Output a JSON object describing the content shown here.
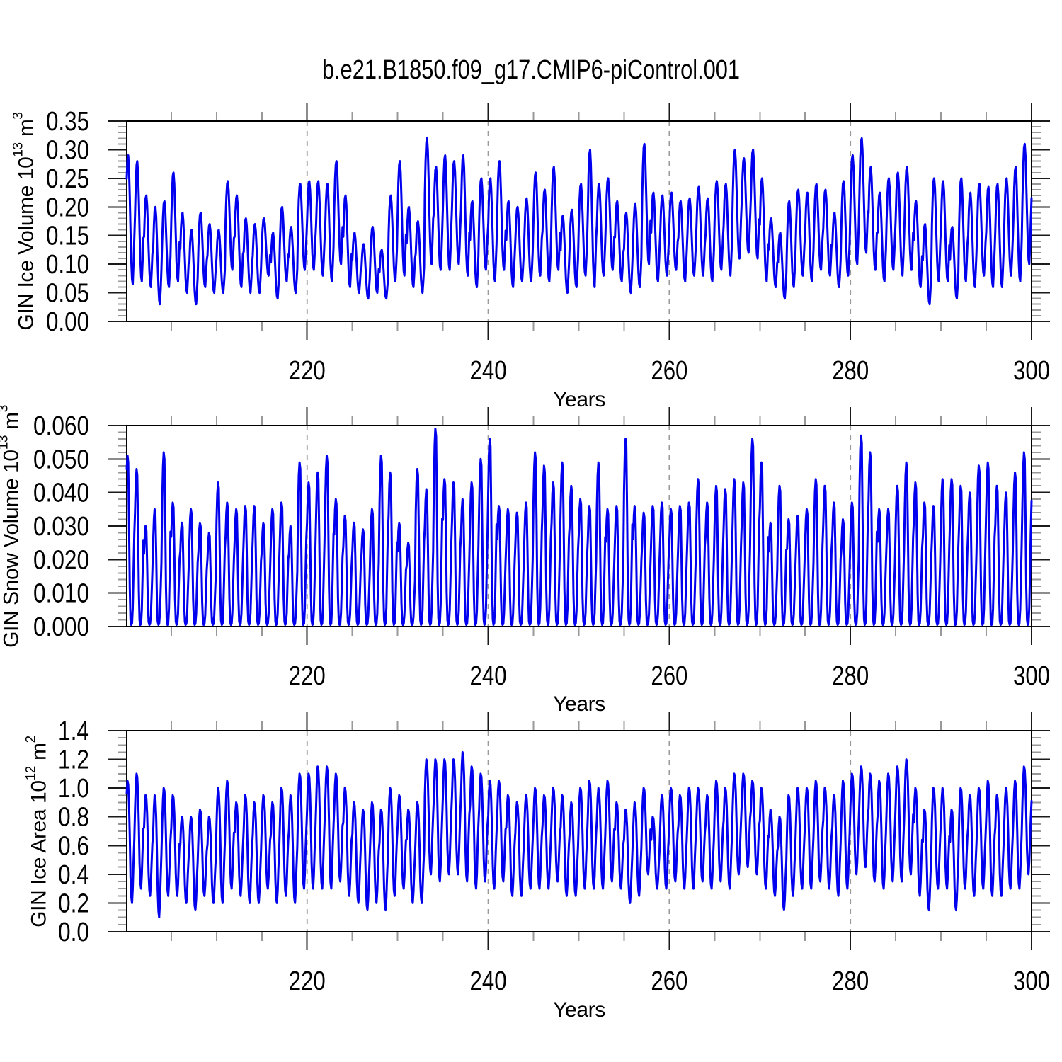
{
  "title": "b.e21.B1850.f09_g17.CMIP6-piControl.001",
  "style": {
    "line_color": "#0000EE",
    "frame_color": "#000000",
    "tick_major_color": "#1a1a1a",
    "tick_minor_color": "#999999",
    "grid_color": "#9a9a9a",
    "text_color": "#000000"
  },
  "chart_data": [
    {
      "type": "line",
      "name": "gin-ice-volume",
      "ylabel": {
        "base": "GIN Ice Volume 10",
        "exp": "13",
        "unit": "m",
        "unit_exp": "3"
      },
      "xlabel": "Years",
      "ylim": [
        0,
        0.35
      ],
      "ytick_values": [
        0.0,
        0.05,
        0.1,
        0.15,
        0.2,
        0.25,
        0.3,
        0.35
      ],
      "ytick_labels": [
        "0.00",
        "0.05",
        "0.10",
        "0.15",
        "0.20",
        "0.25",
        "0.30",
        "0.35"
      ],
      "yminor_step": 0.01,
      "xlim": [
        200.0833,
        300
      ],
      "xtick_values": [
        220,
        240,
        260,
        280,
        300
      ],
      "xtick_labels": [
        "220",
        "240",
        "260",
        "280",
        "300"
      ],
      "xminor_step": 5,
      "grid_x": [
        220,
        240,
        260,
        280
      ],
      "series": {
        "start_year": 200,
        "n_years": 100,
        "seasonal_weights": [
          0.55,
          0.82,
          0.97,
          1.0,
          0.9,
          0.68,
          0.42,
          0.18,
          0.04,
          0.0,
          0.16,
          0.36
        ],
        "annual_max": [
          0.29,
          0.28,
          0.22,
          0.2,
          0.21,
          0.26,
          0.19,
          0.16,
          0.19,
          0.17,
          0.16,
          0.245,
          0.22,
          0.18,
          0.17,
          0.18,
          0.155,
          0.2,
          0.165,
          0.24,
          0.245,
          0.245,
          0.24,
          0.28,
          0.22,
          0.155,
          0.135,
          0.165,
          0.125,
          0.22,
          0.28,
          0.2,
          0.175,
          0.32,
          0.27,
          0.29,
          0.28,
          0.29,
          0.21,
          0.25,
          0.25,
          0.28,
          0.21,
          0.2,
          0.215,
          0.26,
          0.23,
          0.27,
          0.185,
          0.195,
          0.24,
          0.3,
          0.24,
          0.25,
          0.21,
          0.19,
          0.205,
          0.31,
          0.225,
          0.22,
          0.225,
          0.21,
          0.215,
          0.235,
          0.215,
          0.245,
          0.24,
          0.3,
          0.285,
          0.3,
          0.25,
          0.18,
          0.155,
          0.21,
          0.23,
          0.225,
          0.24,
          0.23,
          0.19,
          0.245,
          0.29,
          0.32,
          0.27,
          0.225,
          0.25,
          0.26,
          0.27,
          0.21,
          0.17,
          0.25,
          0.245,
          0.165,
          0.25,
          0.225,
          0.24,
          0.235,
          0.24,
          0.25,
          0.27,
          0.31
        ],
        "annual_min": [
          0.065,
          0.07,
          0.06,
          0.03,
          0.06,
          0.07,
          0.05,
          0.03,
          0.06,
          0.05,
          0.05,
          0.09,
          0.06,
          0.05,
          0.05,
          0.08,
          0.04,
          0.07,
          0.05,
          0.09,
          0.09,
          0.08,
          0.07,
          0.1,
          0.06,
          0.05,
          0.04,
          0.05,
          0.04,
          0.07,
          0.08,
          0.06,
          0.05,
          0.1,
          0.09,
          0.09,
          0.1,
          0.08,
          0.06,
          0.09,
          0.07,
          0.09,
          0.06,
          0.07,
          0.07,
          0.08,
          0.07,
          0.09,
          0.05,
          0.06,
          0.08,
          0.06,
          0.08,
          0.09,
          0.07,
          0.05,
          0.06,
          0.1,
          0.07,
          0.08,
          0.09,
          0.07,
          0.08,
          0.08,
          0.07,
          0.09,
          0.08,
          0.11,
          0.12,
          0.11,
          0.07,
          0.06,
          0.04,
          0.06,
          0.08,
          0.07,
          0.09,
          0.08,
          0.06,
          0.08,
          0.1,
          0.12,
          0.09,
          0.07,
          0.09,
          0.08,
          0.09,
          0.06,
          0.03,
          0.07,
          0.07,
          0.04,
          0.07,
          0.06,
          0.08,
          0.06,
          0.06,
          0.08,
          0.07,
          0.1
        ]
      }
    },
    {
      "type": "line",
      "name": "gin-snow-volume",
      "ylabel": {
        "base": "GIN Snow Volume 10",
        "exp": "13",
        "unit": "m",
        "unit_exp": "3"
      },
      "xlabel": "Years",
      "ylim": [
        0,
        0.06
      ],
      "ytick_values": [
        0.0,
        0.01,
        0.02,
        0.03,
        0.04,
        0.05,
        0.06
      ],
      "ytick_labels": [
        "0.000",
        "0.010",
        "0.020",
        "0.030",
        "0.040",
        "0.050",
        "0.060"
      ],
      "yminor_step": 0.002,
      "xlim": [
        200.0833,
        300
      ],
      "xtick_values": [
        220,
        240,
        260,
        280,
        300
      ],
      "xtick_labels": [
        "220",
        "240",
        "260",
        "280",
        "300"
      ],
      "xminor_step": 5,
      "grid_x": [
        220,
        240,
        260,
        280
      ],
      "series": {
        "start_year": 200,
        "n_years": 100,
        "seasonal_weights": [
          0.72,
          0.92,
          1.0,
          0.96,
          0.62,
          0.22,
          0.03,
          0.0,
          0.01,
          0.1,
          0.32,
          0.54
        ],
        "annual_max": [
          0.051,
          0.047,
          0.03,
          0.035,
          0.052,
          0.037,
          0.031,
          0.035,
          0.031,
          0.028,
          0.043,
          0.037,
          0.035,
          0.036,
          0.036,
          0.031,
          0.035,
          0.037,
          0.03,
          0.049,
          0.043,
          0.046,
          0.051,
          0.038,
          0.033,
          0.031,
          0.029,
          0.035,
          0.051,
          0.046,
          0.031,
          0.025,
          0.047,
          0.041,
          0.059,
          0.044,
          0.043,
          0.038,
          0.043,
          0.05,
          0.056,
          0.036,
          0.035,
          0.034,
          0.037,
          0.052,
          0.048,
          0.043,
          0.049,
          0.042,
          0.038,
          0.036,
          0.049,
          0.035,
          0.036,
          0.056,
          0.036,
          0.034,
          0.036,
          0.037,
          0.035,
          0.036,
          0.037,
          0.044,
          0.037,
          0.042,
          0.041,
          0.044,
          0.043,
          0.056,
          0.049,
          0.031,
          0.042,
          0.032,
          0.033,
          0.035,
          0.044,
          0.042,
          0.037,
          0.032,
          0.037,
          0.057,
          0.052,
          0.035,
          0.035,
          0.042,
          0.049,
          0.043,
          0.037,
          0.036,
          0.044,
          0.044,
          0.042,
          0.04,
          0.048,
          0.049,
          0.042,
          0.04,
          0.046,
          0.052
        ],
        "annual_min_const": 0.0005
      }
    },
    {
      "type": "line",
      "name": "gin-ice-area",
      "ylabel": {
        "base": "GIN Ice Area 10",
        "exp": "12",
        "unit": "m",
        "unit_exp": "2"
      },
      "xlabel": "Years",
      "ylim": [
        0,
        1.4
      ],
      "ytick_values": [
        0.0,
        0.2,
        0.4,
        0.6,
        0.8,
        1.0,
        1.2,
        1.4
      ],
      "ytick_labels": [
        "0.0",
        "0.2",
        "0.4",
        "0.6",
        "0.8",
        "1.0",
        "1.2",
        "1.4"
      ],
      "yminor_step": 0.05,
      "xlim": [
        200.0833,
        300
      ],
      "xtick_values": [
        220,
        240,
        260,
        280,
        300
      ],
      "xtick_labels": [
        "220",
        "240",
        "260",
        "280",
        "300"
      ],
      "xminor_step": 5,
      "grid_x": [
        220,
        240,
        260,
        280
      ],
      "series": {
        "start_year": 200,
        "n_years": 100,
        "seasonal_weights": [
          0.68,
          0.9,
          1.0,
          0.97,
          0.82,
          0.55,
          0.22,
          0.05,
          0.0,
          0.12,
          0.34,
          0.52
        ],
        "annual_max": [
          1.05,
          1.1,
          0.95,
          0.95,
          1.0,
          0.95,
          0.8,
          0.8,
          0.85,
          0.8,
          1.0,
          1.05,
          0.9,
          0.95,
          0.9,
          0.95,
          0.9,
          1.0,
          0.95,
          1.1,
          1.1,
          1.15,
          1.15,
          1.1,
          1.0,
          0.9,
          0.85,
          0.9,
          0.85,
          1.0,
          0.95,
          0.85,
          0.9,
          1.2,
          1.2,
          1.2,
          1.2,
          1.25,
          1.15,
          1.1,
          1.05,
          1.05,
          0.95,
          0.9,
          0.95,
          1.0,
          0.95,
          1.0,
          0.95,
          0.9,
          1.0,
          1.05,
          1.0,
          1.05,
          0.9,
          0.85,
          0.9,
          1.0,
          0.8,
          0.95,
          1.0,
          0.95,
          1.0,
          1.0,
          0.95,
          1.05,
          1.0,
          1.1,
          1.1,
          1.05,
          1.0,
          0.85,
          0.8,
          0.95,
          1.0,
          1.0,
          1.05,
          1.0,
          0.95,
          1.05,
          1.1,
          1.15,
          1.1,
          1.05,
          1.1,
          1.15,
          1.2,
          1.0,
          0.85,
          1.0,
          1.0,
          0.85,
          1.0,
          0.95,
          1.0,
          1.05,
          0.95,
          1.0,
          1.05,
          1.15
        ],
        "annual_min": [
          0.2,
          0.3,
          0.25,
          0.1,
          0.25,
          0.25,
          0.2,
          0.15,
          0.25,
          0.2,
          0.2,
          0.3,
          0.25,
          0.2,
          0.2,
          0.3,
          0.2,
          0.25,
          0.2,
          0.3,
          0.3,
          0.3,
          0.3,
          0.35,
          0.25,
          0.2,
          0.15,
          0.2,
          0.15,
          0.25,
          0.3,
          0.2,
          0.2,
          0.4,
          0.35,
          0.4,
          0.4,
          0.35,
          0.3,
          0.35,
          0.3,
          0.35,
          0.25,
          0.25,
          0.3,
          0.3,
          0.3,
          0.35,
          0.25,
          0.25,
          0.3,
          0.3,
          0.3,
          0.35,
          0.3,
          0.2,
          0.25,
          0.4,
          0.3,
          0.3,
          0.35,
          0.3,
          0.3,
          0.35,
          0.3,
          0.35,
          0.3,
          0.4,
          0.45,
          0.4,
          0.3,
          0.25,
          0.15,
          0.25,
          0.3,
          0.3,
          0.35,
          0.3,
          0.25,
          0.3,
          0.4,
          0.45,
          0.35,
          0.3,
          0.35,
          0.35,
          0.4,
          0.25,
          0.15,
          0.3,
          0.3,
          0.15,
          0.3,
          0.25,
          0.3,
          0.25,
          0.25,
          0.3,
          0.3,
          0.4
        ]
      }
    }
  ]
}
